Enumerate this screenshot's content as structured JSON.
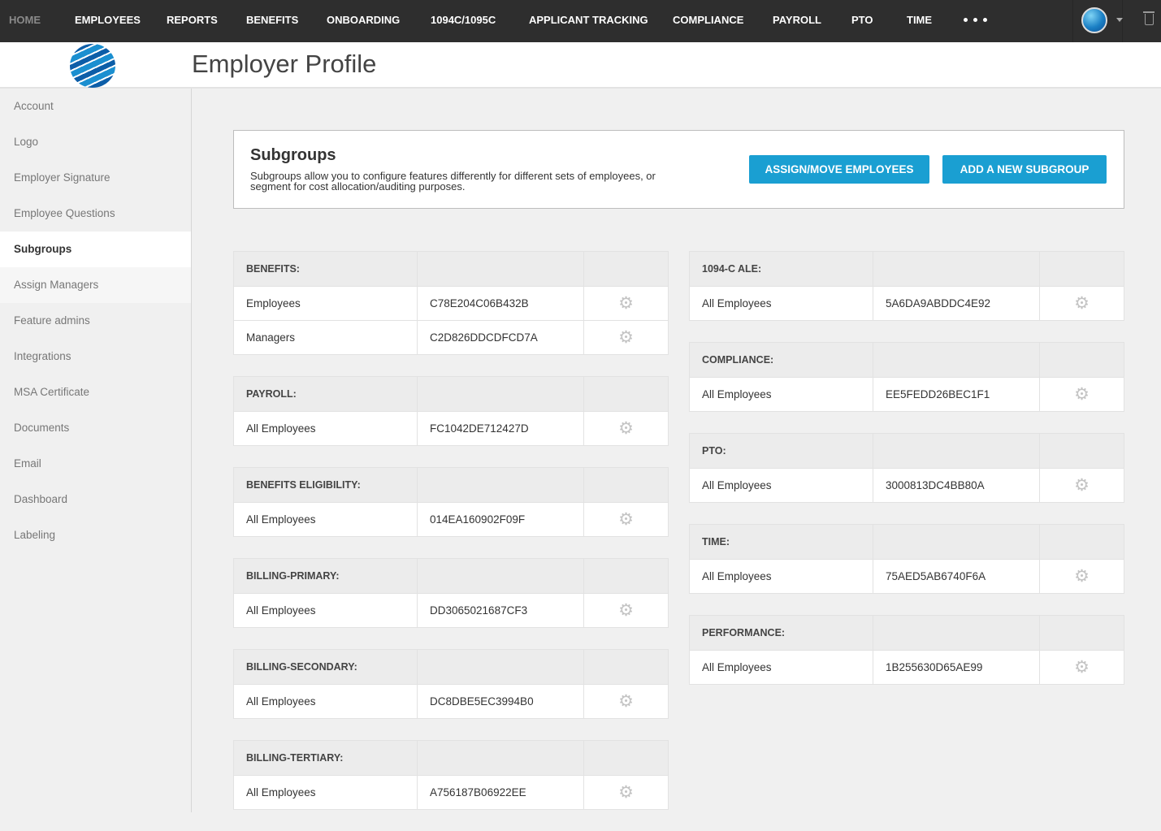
{
  "nav": {
    "items": [
      "HOME",
      "EMPLOYEES",
      "REPORTS",
      "BENEFITS",
      "ONBOARDING",
      "1094C/1095C",
      "APPLICANT TRACKING",
      "COMPLIANCE",
      "PAYROLL",
      "PTO",
      "TIME"
    ],
    "more_icon": "ellipsis-icon",
    "user_icon": "avatar-globe",
    "trash_icon": "trash-icon"
  },
  "header": {
    "title": "Employer Profile"
  },
  "sidebar": {
    "items": [
      "Account",
      "Logo",
      "Employer Signature",
      "Employee Questions",
      "Subgroups",
      "Assign Managers",
      "Feature admins",
      "Integrations",
      "MSA Certificate",
      "Documents",
      "Email",
      "Dashboard",
      "Labeling"
    ],
    "active": "Subgroups"
  },
  "subgroups": {
    "title": "Subgroups",
    "description": "Subgroups allow you to configure features differently for different sets of employees, or segment for cost allocation/auditing purposes.",
    "assign_button": "ASSIGN/MOVE EMPLOYEES",
    "add_button": "ADD A NEW SUBGROUP",
    "accent_color": "#1a9fd2"
  },
  "groups_left": [
    {
      "title": "BENEFITS:",
      "rows": [
        {
          "name": "Employees",
          "id": "C78E204C06B432B"
        },
        {
          "name": "Managers",
          "id": "C2D826DDCDFCD7A"
        }
      ]
    },
    {
      "title": "PAYROLL:",
      "rows": [
        {
          "name": "All Employees",
          "id": "FC1042DE712427D"
        }
      ]
    },
    {
      "title": "BENEFITS ELIGIBILITY:",
      "rows": [
        {
          "name": "All Employees",
          "id": "014EA160902F09F"
        }
      ]
    },
    {
      "title": "BILLING-PRIMARY:",
      "rows": [
        {
          "name": "All Employees",
          "id": "DD3065021687CF3"
        }
      ]
    },
    {
      "title": "BILLING-SECONDARY:",
      "rows": [
        {
          "name": "All Employees",
          "id": "DC8DBE5EC3994B0"
        }
      ]
    },
    {
      "title": "BILLING-TERTIARY:",
      "rows": [
        {
          "name": "All Employees",
          "id": "A756187B06922EE"
        }
      ]
    }
  ],
  "groups_right": [
    {
      "title": "1094-C ALE:",
      "rows": [
        {
          "name": "All Employees",
          "id": "5A6DA9ABDDC4E92"
        }
      ]
    },
    {
      "title": "COMPLIANCE:",
      "rows": [
        {
          "name": "All Employees",
          "id": "EE5FEDD26BEC1F1"
        }
      ]
    },
    {
      "title": "PTO:",
      "rows": [
        {
          "name": "All Employees",
          "id": "3000813DC4BB80A"
        }
      ]
    },
    {
      "title": "TIME:",
      "rows": [
        {
          "name": "All Employees",
          "id": "75AED5AB6740F6A"
        }
      ]
    },
    {
      "title": "PERFORMANCE:",
      "rows": [
        {
          "name": "All Employees",
          "id": "1B255630D65AE99"
        }
      ]
    }
  ]
}
